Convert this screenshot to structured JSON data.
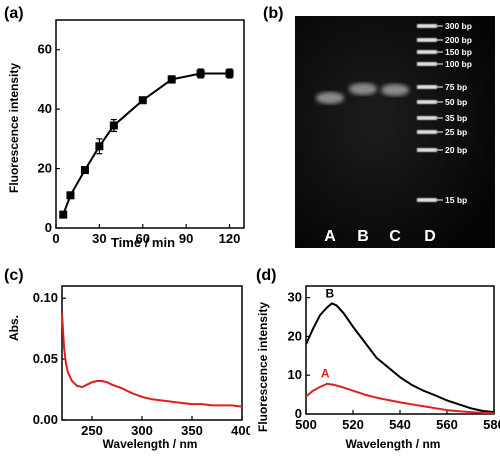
{
  "panels": [
    {
      "label": "(a)",
      "chart_data": {
        "type": "line",
        "xlabel": "Time / min",
        "ylabel": "Fluorescence intensity",
        "xlim": [
          0,
          130
        ],
        "ylim": [
          0,
          70
        ],
        "xticks": [
          0,
          30,
          60,
          90,
          120
        ],
        "yticks": [
          0,
          20,
          40,
          60
        ],
        "x": [
          5,
          10,
          20,
          30,
          40,
          60,
          80,
          100,
          120
        ],
        "values": [
          4.5,
          11,
          19.5,
          27.5,
          34.5,
          43,
          50,
          52,
          52
        ],
        "errors": [
          1.0,
          1.0,
          1.0,
          2.5,
          2.0,
          1.0,
          1.2,
          1.5,
          1.5
        ],
        "color": "#000000"
      }
    },
    {
      "label": "(b)",
      "gel": {
        "lanes": [
          "A",
          "B",
          "C",
          "D"
        ],
        "ladder": [
          "300 bp",
          "200 bp",
          "150 bp",
          "100 bp",
          "75 bp",
          "50 bp",
          "35 bp",
          "25 bp",
          "20 bp",
          "15 bp"
        ]
      }
    },
    {
      "label": "(c)",
      "chart_data": {
        "type": "line",
        "xlabel": "Wavelength / nm",
        "ylabel": "Abs.",
        "xlim": [
          220,
          400
        ],
        "ylim": [
          0,
          0.11
        ],
        "xticks": [
          250,
          300,
          350,
          400
        ],
        "yticks": [
          0.0,
          0.05,
          0.1
        ],
        "ytick_labels": [
          "0.00",
          "0.05",
          "0.10"
        ],
        "x": [
          220,
          222,
          224,
          226,
          230,
          235,
          240,
          245,
          250,
          255,
          260,
          265,
          270,
          280,
          290,
          300,
          310,
          320,
          330,
          340,
          350,
          360,
          370,
          380,
          390,
          400
        ],
        "values": [
          0.088,
          0.06,
          0.046,
          0.039,
          0.032,
          0.028,
          0.027,
          0.029,
          0.031,
          0.032,
          0.032,
          0.031,
          0.029,
          0.026,
          0.022,
          0.019,
          0.017,
          0.016,
          0.015,
          0.014,
          0.013,
          0.013,
          0.012,
          0.012,
          0.012,
          0.011
        ],
        "color": "#dd2020"
      }
    },
    {
      "label": "(d)",
      "chart_data": {
        "type": "line",
        "xlabel": "Wavelength / nm",
        "ylabel": "Fluorescence intensity",
        "xlim": [
          500,
          580
        ],
        "ylim": [
          0,
          33
        ],
        "xticks": [
          500,
          520,
          540,
          560,
          580
        ],
        "yticks": [
          0,
          10,
          20,
          30
        ],
        "series": [
          {
            "name": "B",
            "color": "#000000",
            "x": [
              500,
              503,
              506,
              509,
              511,
              513,
              516,
              520,
              525,
              530,
              535,
              540,
              545,
              550,
              555,
              560,
              565,
              570,
              575,
              580
            ],
            "values": [
              18,
              22,
              25.5,
              27.5,
              28.5,
              28,
              26,
              22.5,
              18.5,
              14.5,
              12,
              9.5,
              7.5,
              6,
              4.8,
              3.5,
              2.5,
              1.5,
              0.8,
              0.5
            ]
          },
          {
            "name": "A",
            "color": "#dd2020",
            "x": [
              500,
              503,
              506,
              509,
              512,
              515,
              520,
              525,
              530,
              535,
              540,
              545,
              550,
              555,
              560,
              565,
              570,
              575,
              580
            ],
            "values": [
              4.5,
              6,
              7,
              7.8,
              7.5,
              7,
              6,
              5,
              4.2,
              3.6,
              3,
              2.5,
              2,
              1.5,
              1,
              0.7,
              0.5,
              0.3,
              0.2
            ]
          }
        ]
      }
    }
  ]
}
